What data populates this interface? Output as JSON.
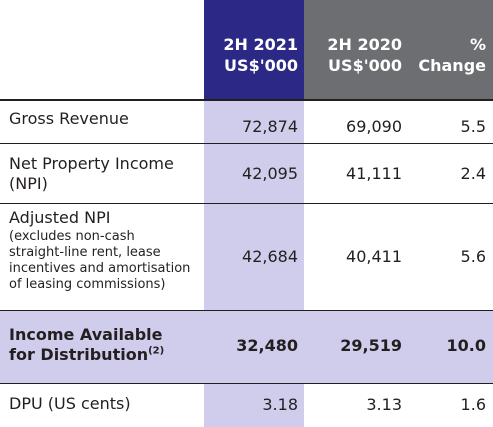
{
  "header": {
    "col_2021_line1": "2H 2021",
    "col_2021_line2": "US$'000",
    "col_2020_line1": "2H 2020",
    "col_2020_line2": "US$'000",
    "col_change_line1": "%",
    "col_change_line2": "Change"
  },
  "rows": [
    {
      "label": "Gross Revenue",
      "v2021": "72,874",
      "v2020": "69,090",
      "change": "5.5"
    },
    {
      "label_line1": "Net Property Income",
      "label_line2": "(NPI)",
      "v2021": "42,095",
      "v2020": "41,111",
      "change": "2.4"
    },
    {
      "label": "Adjusted NPI",
      "note_line1": "(excludes non-cash",
      "note_line2": "straight-line rent, lease",
      "note_line3": "incentives and amortisation",
      "note_line4": "of leasing commissions)",
      "v2021": "42,684",
      "v2020": "40,411",
      "change": "5.6"
    },
    {
      "label_line1": "Income Available",
      "label_line2": "for Distribution",
      "footnote": "(2)",
      "v2021": "32,480",
      "v2020": "29,519",
      "change": "10.0"
    },
    {
      "label": "DPU (US cents)",
      "v2021": "3.18",
      "v2020": "3.13",
      "change": "1.6"
    }
  ],
  "colors": {
    "header_2021": "#2b2886",
    "header_other": "#6d6e71",
    "highlight": "#cfcdeb",
    "text": "#231f20"
  }
}
